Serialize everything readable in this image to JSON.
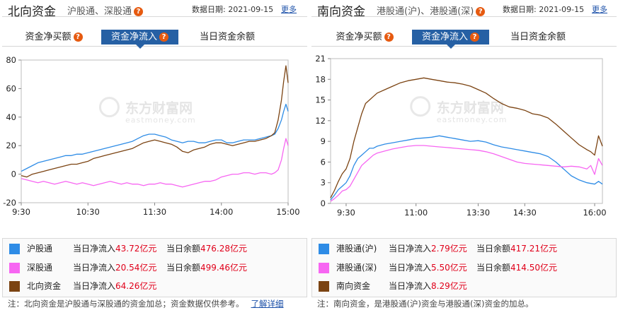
{
  "north": {
    "title": "北向资金",
    "subtitle": "沪股通、深股通",
    "date_label": "数据日期:",
    "date": "2021-09-15",
    "more": "更多",
    "tabs": [
      {
        "label": "资金净买额",
        "help": true,
        "active": false
      },
      {
        "label": "资金净流入",
        "help": true,
        "active": true
      },
      {
        "label": "当日资金余额",
        "help": false,
        "active": false
      }
    ],
    "legend": [
      {
        "color": "#2e8ce6",
        "name": "沪股通",
        "flow_label": "当日净流入",
        "flow_value": "43.72亿元",
        "bal_label": "当日余额",
        "bal_value": "476.28亿元"
      },
      {
        "color": "#f766f2",
        "name": "深股通",
        "flow_label": "当日净流入",
        "flow_value": "20.54亿元",
        "bal_label": "当日余额",
        "bal_value": "499.46亿元"
      },
      {
        "color": "#7b4312",
        "name": "北向资金",
        "flow_label": "当日净流入",
        "flow_value": "64.26亿元",
        "bal_label": "",
        "bal_value": ""
      }
    ],
    "note": "注：北向资金是沪股通与深股通的资金加总；资金数据仅供参考。",
    "note_link": "了解详细"
  },
  "south": {
    "title": "南向资金",
    "subtitle": "港股通(沪)、港股通(深)",
    "date_label": "数据日期:",
    "date": "2021-09-15",
    "more": "更多",
    "tabs": [
      {
        "label": "资金净买额",
        "help": true,
        "active": false
      },
      {
        "label": "资金净流入",
        "help": true,
        "active": true
      },
      {
        "label": "当日资金余额",
        "help": false,
        "active": false
      }
    ],
    "legend": [
      {
        "color": "#2e8ce6",
        "name": "港股通(沪)",
        "flow_label": "当日净流入",
        "flow_value": "2.79亿元",
        "bal_label": "当日余额",
        "bal_value": "417.21亿元"
      },
      {
        "color": "#f766f2",
        "name": "港股通(深)",
        "flow_label": "当日净流入",
        "flow_value": "5.50亿元",
        "bal_label": "当日余额",
        "bal_value": "414.50亿元"
      },
      {
        "color": "#7b4312",
        "name": "南向资金",
        "flow_label": "当日净流入",
        "flow_value": "8.29亿元",
        "bal_label": "",
        "bal_value": ""
      }
    ],
    "note": "注：南向资金，是港股通(沪)资金与港股通(深)资金的加总。",
    "note_link": ""
  },
  "watermark": {
    "cn": "东方财富网",
    "en": "eastmoney.com"
  },
  "colors": {
    "accent": "#2660a4",
    "series_sh": "#2e8ce6",
    "series_sz": "#f766f2",
    "series_total": "#7b4312",
    "value_red": "#e0001a"
  },
  "chart_data": [
    {
      "type": "line",
      "id": "north",
      "title": "",
      "x_ticks": [
        "9:30",
        "10:30",
        "11:30",
        "14:00",
        "15:00"
      ],
      "x_tick_pos": [
        0,
        60,
        120,
        180,
        240
      ],
      "x_range": [
        0,
        240
      ],
      "ylim": [
        -20,
        80
      ],
      "y_ticks": [
        -20,
        0,
        20,
        40,
        60,
        80
      ],
      "grid": false,
      "series": [
        {
          "name": "沪股通",
          "color": "#2e8ce6",
          "x": [
            0,
            5,
            10,
            15,
            20,
            25,
            30,
            35,
            40,
            45,
            50,
            55,
            60,
            65,
            70,
            75,
            80,
            85,
            90,
            95,
            100,
            105,
            110,
            115,
            120,
            125,
            130,
            135,
            140,
            145,
            150,
            155,
            160,
            165,
            170,
            175,
            180,
            185,
            190,
            195,
            200,
            205,
            210,
            215,
            220,
            225,
            228,
            231,
            234,
            236,
            238,
            240
          ],
          "y": [
            2,
            4,
            6,
            8,
            9,
            10,
            11,
            12,
            13,
            13,
            14,
            14,
            15,
            16,
            17,
            18,
            19,
            20,
            21,
            22,
            23,
            25,
            27,
            28,
            28,
            27,
            26,
            24,
            23,
            22,
            23,
            23,
            22,
            22,
            23,
            24,
            24,
            22,
            22,
            23,
            24,
            24,
            24,
            25,
            26,
            27,
            28,
            32,
            38,
            44,
            49,
            44
          ]
        },
        {
          "name": "深股通",
          "color": "#f766f2",
          "x": [
            0,
            5,
            10,
            15,
            20,
            25,
            30,
            35,
            40,
            45,
            50,
            55,
            60,
            65,
            70,
            75,
            80,
            85,
            90,
            95,
            100,
            105,
            110,
            115,
            120,
            125,
            130,
            135,
            140,
            145,
            150,
            155,
            160,
            165,
            170,
            175,
            180,
            185,
            190,
            195,
            200,
            205,
            210,
            215,
            220,
            225,
            228,
            231,
            234,
            236,
            238,
            240
          ],
          "y": [
            -3,
            -4,
            -5,
            -6,
            -5,
            -6,
            -7,
            -6,
            -5,
            -6,
            -7,
            -6,
            -7,
            -8,
            -7,
            -6,
            -5,
            -6,
            -7,
            -6,
            -7,
            -7,
            -8,
            -7,
            -7,
            -6,
            -7,
            -7,
            -8,
            -9,
            -8,
            -7,
            -6,
            -5,
            -5,
            -4,
            -2,
            -1,
            0,
            0,
            1,
            1,
            0,
            1,
            1,
            0,
            1,
            3,
            10,
            18,
            25,
            20
          ]
        },
        {
          "name": "北向资金",
          "color": "#7b4312",
          "x": [
            0,
            5,
            10,
            15,
            20,
            25,
            30,
            35,
            40,
            45,
            50,
            55,
            60,
            65,
            70,
            75,
            80,
            85,
            90,
            95,
            100,
            105,
            110,
            115,
            120,
            125,
            130,
            135,
            140,
            145,
            150,
            155,
            160,
            165,
            170,
            175,
            180,
            185,
            190,
            195,
            200,
            205,
            210,
            215,
            220,
            225,
            228,
            231,
            234,
            236,
            238,
            240
          ],
          "y": [
            -1,
            -2,
            0,
            1,
            2,
            3,
            4,
            5,
            6,
            7,
            7,
            8,
            9,
            11,
            12,
            13,
            14,
            15,
            16,
            17,
            18,
            20,
            22,
            23,
            24,
            23,
            22,
            21,
            19,
            16,
            15,
            17,
            18,
            19,
            21,
            22,
            22,
            21,
            20,
            21,
            22,
            23,
            23,
            24,
            25,
            27,
            29,
            38,
            52,
            65,
            76,
            64
          ]
        }
      ]
    },
    {
      "type": "line",
      "id": "south",
      "title": "",
      "x_ticks": [
        "9:30",
        "11:00",
        "13:30",
        "14:30",
        "16:00"
      ],
      "x_tick_pos": [
        20,
        110,
        190,
        250,
        340
      ],
      "x_range": [
        0,
        350
      ],
      "ylim": [
        0,
        21
      ],
      "y_ticks": [
        0,
        3,
        6,
        9,
        12,
        15,
        18,
        21
      ],
      "grid": false,
      "series": [
        {
          "name": "港股通(沪)",
          "color": "#2e8ce6",
          "x": [
            0,
            5,
            10,
            15,
            20,
            25,
            30,
            35,
            40,
            45,
            50,
            55,
            60,
            70,
            80,
            90,
            100,
            110,
            120,
            130,
            140,
            150,
            160,
            170,
            180,
            190,
            200,
            210,
            220,
            230,
            240,
            250,
            260,
            270,
            280,
            290,
            300,
            310,
            320,
            330,
            335,
            340,
            345,
            350
          ],
          "y": [
            0.5,
            1.2,
            2,
            2.5,
            3,
            4,
            5.5,
            6.5,
            7,
            7.5,
            8,
            8,
            8.3,
            8.6,
            8.8,
            9,
            9.2,
            9.4,
            9.5,
            9.6,
            9.8,
            9.6,
            9.4,
            9.2,
            9,
            9.1,
            8.9,
            8.5,
            8.2,
            8.0,
            7.8,
            7.6,
            7.4,
            7.2,
            6.8,
            6.0,
            5.0,
            4.0,
            3.4,
            3.0,
            2.9,
            2.8,
            3.2,
            2.8
          ]
        },
        {
          "name": "港股通(深)",
          "color": "#f766f2",
          "x": [
            0,
            5,
            10,
            15,
            20,
            25,
            30,
            35,
            40,
            45,
            50,
            55,
            60,
            70,
            80,
            90,
            100,
            110,
            120,
            130,
            140,
            150,
            160,
            170,
            180,
            190,
            200,
            210,
            220,
            230,
            240,
            250,
            260,
            270,
            280,
            290,
            300,
            310,
            320,
            330,
            335,
            340,
            345,
            350
          ],
          "y": [
            0.3,
            0.7,
            1.2,
            1.8,
            2,
            2.5,
            3.5,
            4.5,
            5.5,
            6,
            6.5,
            7,
            7.3,
            7.6,
            7.9,
            8.1,
            8.3,
            8.4,
            8.4,
            8.3,
            8.2,
            8.1,
            8.0,
            7.9,
            7.8,
            7.7,
            7.5,
            7.2,
            6.8,
            6.4,
            6.0,
            5.8,
            5.7,
            5.6,
            5.5,
            5.4,
            5.3,
            5.4,
            5.3,
            5.0,
            5.5,
            4.2,
            6.5,
            5.5
          ]
        },
        {
          "name": "南向资金",
          "color": "#7b4312",
          "x": [
            0,
            5,
            10,
            15,
            20,
            25,
            30,
            35,
            40,
            45,
            50,
            55,
            60,
            70,
            80,
            90,
            100,
            110,
            120,
            130,
            140,
            150,
            160,
            170,
            180,
            190,
            200,
            210,
            220,
            230,
            240,
            250,
            260,
            270,
            280,
            290,
            300,
            310,
            320,
            330,
            335,
            340,
            345,
            350
          ],
          "y": [
            0.8,
            1.9,
            3.2,
            4.3,
            5,
            6.5,
            9,
            11,
            13,
            14.5,
            15,
            15.5,
            16,
            16.5,
            17,
            17.5,
            17.8,
            18,
            18.2,
            18,
            17.8,
            17.6,
            17.5,
            17.3,
            17,
            16.5,
            16,
            15.2,
            14.5,
            14.0,
            13.8,
            13.5,
            13.0,
            12.8,
            12.4,
            11.5,
            10.5,
            9.5,
            8.5,
            7.8,
            7.5,
            7.0,
            9.8,
            8.3
          ]
        }
      ]
    }
  ]
}
